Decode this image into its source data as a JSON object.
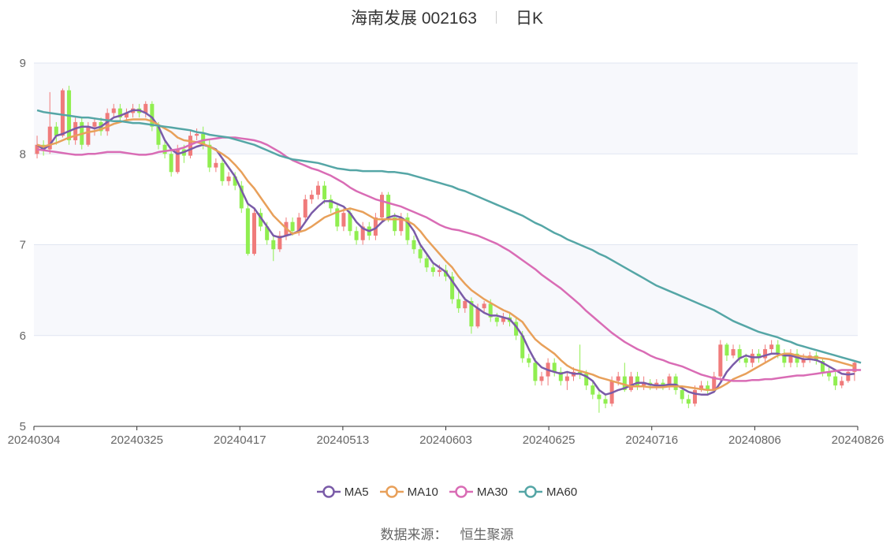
{
  "header": {
    "title": "海南发展 002163",
    "period": "日K"
  },
  "source": {
    "label": "数据来源：",
    "value": "恒生聚源"
  },
  "colors": {
    "up": "#f07b7b",
    "down": "#90ee50",
    "grid_band": "#f7f8fc",
    "axis": "#333333",
    "ma5": "#7a5ba8",
    "ma10": "#e8a05a",
    "ma30": "#d96cb5",
    "ma60": "#55a6a6"
  },
  "chart_data": {
    "type": "candlestick",
    "title": "海南发展 002163",
    "ylim": [
      5,
      9
    ],
    "yticks": [
      "5",
      "6",
      "7",
      "8",
      "9"
    ],
    "xticks": [
      "20240304",
      "20240325",
      "20240417",
      "20240513",
      "20240603",
      "20240625",
      "20240716",
      "20240806",
      "20240826"
    ],
    "legend": [
      "MA5",
      "MA10",
      "MA30",
      "MA60"
    ],
    "legend_position": "bottom-center",
    "grid": true,
    "candles": [
      [
        8.0,
        8.1,
        8.2,
        7.95
      ],
      [
        8.1,
        8.05,
        8.15,
        7.98
      ],
      [
        8.05,
        8.3,
        8.68,
        8.0
      ],
      [
        8.3,
        8.2,
        8.35,
        8.1
      ],
      [
        8.2,
        8.7,
        8.72,
        8.18
      ],
      [
        8.7,
        8.15,
        8.75,
        8.1
      ],
      [
        8.15,
        8.35,
        8.4,
        8.1
      ],
      [
        8.35,
        8.1,
        8.4,
        8.05
      ],
      [
        8.1,
        8.3,
        8.35,
        8.08
      ],
      [
        8.3,
        8.35,
        8.4,
        8.2
      ],
      [
        8.35,
        8.25,
        8.4,
        8.2
      ],
      [
        8.25,
        8.45,
        8.5,
        8.2
      ],
      [
        8.45,
        8.5,
        8.55,
        8.4
      ],
      [
        8.5,
        8.4,
        8.55,
        8.35
      ],
      [
        8.4,
        8.45,
        8.5,
        8.35
      ],
      [
        8.45,
        8.5,
        8.55,
        8.4
      ],
      [
        8.5,
        8.45,
        8.55,
        8.4
      ],
      [
        8.45,
        8.55,
        8.58,
        8.4
      ],
      [
        8.55,
        8.3,
        8.58,
        8.25
      ],
      [
        8.3,
        8.1,
        8.35,
        8.05
      ],
      [
        8.1,
        8.0,
        8.15,
        7.95
      ],
      [
        8.0,
        7.8,
        8.05,
        7.75
      ],
      [
        7.8,
        8.05,
        8.1,
        7.78
      ],
      [
        8.05,
        7.98,
        8.1,
        7.9
      ],
      [
        7.98,
        8.2,
        8.25,
        7.95
      ],
      [
        8.2,
        8.22,
        8.28,
        8.15
      ],
      [
        8.22,
        8.1,
        8.3,
        8.05
      ],
      [
        8.1,
        7.85,
        8.15,
        7.8
      ],
      [
        7.85,
        7.9,
        7.95,
        7.8
      ],
      [
        7.9,
        7.7,
        7.95,
        7.65
      ],
      [
        7.7,
        7.75,
        7.8,
        7.65
      ],
      [
        7.75,
        7.65,
        7.8,
        7.6
      ],
      [
        7.65,
        7.4,
        7.7,
        7.35
      ],
      [
        7.4,
        6.9,
        7.45,
        6.88
      ],
      [
        6.9,
        7.35,
        7.4,
        6.88
      ],
      [
        7.35,
        7.2,
        7.4,
        7.15
      ],
      [
        7.2,
        7.05,
        7.25,
        7.0
      ],
      [
        7.05,
        6.95,
        7.1,
        6.82
      ],
      [
        6.95,
        7.1,
        7.15,
        6.92
      ],
      [
        7.1,
        7.25,
        7.3,
        7.05
      ],
      [
        7.25,
        7.15,
        7.3,
        7.1
      ],
      [
        7.15,
        7.3,
        7.35,
        7.1
      ],
      [
        7.3,
        7.5,
        7.55,
        7.25
      ],
      [
        7.5,
        7.55,
        7.6,
        7.45
      ],
      [
        7.55,
        7.65,
        7.7,
        7.5
      ],
      [
        7.65,
        7.5,
        7.7,
        7.45
      ],
      [
        7.5,
        7.4,
        7.55,
        7.35
      ],
      [
        7.4,
        7.2,
        7.45,
        7.15
      ],
      [
        7.2,
        7.35,
        7.4,
        7.15
      ],
      [
        7.35,
        7.15,
        7.4,
        7.1
      ],
      [
        7.15,
        7.05,
        7.2,
        7.0
      ],
      [
        7.05,
        7.2,
        7.25,
        7.0
      ],
      [
        7.2,
        7.1,
        7.25,
        7.05
      ],
      [
        7.1,
        7.3,
        7.35,
        7.05
      ],
      [
        7.3,
        7.55,
        7.58,
        7.25
      ],
      [
        7.55,
        7.3,
        7.58,
        7.25
      ],
      [
        7.3,
        7.15,
        7.35,
        7.1
      ],
      [
        7.15,
        7.3,
        7.35,
        7.1
      ],
      [
        7.3,
        7.05,
        7.35,
        7.0
      ],
      [
        7.05,
        6.95,
        7.1,
        6.9
      ],
      [
        6.95,
        6.85,
        7.0,
        6.8
      ],
      [
        6.85,
        6.75,
        6.9,
        6.7
      ],
      [
        6.75,
        6.7,
        6.8,
        6.65
      ],
      [
        6.7,
        6.72,
        6.78,
        6.65
      ],
      [
        6.72,
        6.65,
        6.78,
        6.6
      ],
      [
        6.65,
        6.4,
        6.7,
        6.35
      ],
      [
        6.4,
        6.3,
        6.5,
        6.25
      ],
      [
        6.3,
        6.38,
        6.42,
        6.25
      ],
      [
        6.38,
        6.1,
        6.42,
        6.02
      ],
      [
        6.1,
        6.3,
        6.35,
        6.08
      ],
      [
        6.3,
        6.35,
        6.38,
        6.25
      ],
      [
        6.35,
        6.2,
        6.4,
        6.15
      ],
      [
        6.2,
        6.15,
        6.25,
        6.1
      ],
      [
        6.15,
        6.2,
        6.25,
        6.12
      ],
      [
        6.2,
        6.15,
        6.25,
        6.1
      ],
      [
        6.15,
        6.0,
        6.2,
        5.95
      ],
      [
        6.0,
        5.75,
        6.05,
        5.7
      ],
      [
        5.75,
        5.7,
        5.8,
        5.65
      ],
      [
        5.7,
        5.5,
        5.75,
        5.45
      ],
      [
        5.5,
        5.55,
        5.6,
        5.45
      ],
      [
        5.55,
        5.7,
        5.75,
        5.45
      ],
      [
        5.7,
        5.6,
        5.75,
        5.55
      ],
      [
        5.6,
        5.5,
        5.65,
        5.45
      ],
      [
        5.5,
        5.55,
        5.6,
        5.4
      ],
      [
        5.55,
        5.6,
        5.65,
        5.5
      ],
      [
        5.6,
        5.58,
        5.9,
        5.52
      ],
      [
        5.58,
        5.45,
        5.62,
        5.4
      ],
      [
        5.45,
        5.35,
        5.5,
        5.3
      ],
      [
        5.35,
        5.3,
        5.4,
        5.15
      ],
      [
        5.3,
        5.25,
        5.35,
        5.2
      ],
      [
        5.25,
        5.5,
        5.55,
        5.22
      ],
      [
        5.5,
        5.55,
        5.6,
        5.45
      ],
      [
        5.55,
        5.4,
        5.7,
        5.38
      ],
      [
        5.4,
        5.55,
        5.6,
        5.38
      ],
      [
        5.55,
        5.45,
        5.6,
        5.4
      ],
      [
        5.45,
        5.48,
        5.55,
        5.4
      ],
      [
        5.48,
        5.45,
        5.52,
        5.4
      ],
      [
        5.45,
        5.48,
        5.52,
        5.4
      ],
      [
        5.48,
        5.45,
        5.52,
        5.4
      ],
      [
        5.45,
        5.55,
        5.58,
        5.4
      ],
      [
        5.55,
        5.4,
        5.58,
        5.35
      ],
      [
        5.4,
        5.3,
        5.45,
        5.25
      ],
      [
        5.3,
        5.25,
        5.35,
        5.2
      ],
      [
        5.25,
        5.4,
        5.45,
        5.22
      ],
      [
        5.4,
        5.45,
        5.5,
        5.38
      ],
      [
        5.45,
        5.4,
        5.5,
        5.35
      ],
      [
        5.4,
        5.55,
        5.6,
        5.38
      ],
      [
        5.55,
        5.9,
        5.95,
        5.5
      ],
      [
        5.9,
        5.78,
        5.92,
        5.72
      ],
      [
        5.78,
        5.85,
        5.9,
        5.75
      ],
      [
        5.85,
        5.75,
        5.9,
        5.7
      ],
      [
        5.75,
        5.7,
        5.8,
        5.65
      ],
      [
        5.7,
        5.8,
        5.85,
        5.65
      ],
      [
        5.8,
        5.75,
        5.85,
        5.7
      ],
      [
        5.75,
        5.85,
        5.9,
        5.7
      ],
      [
        5.85,
        5.9,
        5.95,
        5.8
      ],
      [
        5.9,
        5.8,
        5.95,
        5.75
      ],
      [
        5.8,
        5.7,
        5.85,
        5.65
      ],
      [
        5.7,
        5.8,
        5.85,
        5.65
      ],
      [
        5.8,
        5.7,
        5.85,
        5.65
      ],
      [
        5.7,
        5.75,
        5.8,
        5.65
      ],
      [
        5.75,
        5.78,
        5.82,
        5.7
      ],
      [
        5.78,
        5.72,
        5.82,
        5.68
      ],
      [
        5.72,
        5.6,
        5.75,
        5.55
      ],
      [
        5.6,
        5.55,
        5.65,
        5.5
      ],
      [
        5.55,
        5.45,
        5.6,
        5.4
      ],
      [
        5.45,
        5.5,
        5.55,
        5.42
      ],
      [
        5.5,
        5.6,
        5.62,
        5.48
      ],
      [
        5.6,
        5.7,
        5.72,
        5.5
      ]
    ],
    "series": [
      {
        "name": "MA5",
        "values": [
          8.1,
          8.05,
          8.1,
          8.2,
          8.22,
          8.25,
          8.28,
          8.3,
          8.3,
          8.28,
          8.3,
          8.35,
          8.4,
          8.42,
          8.45,
          8.48,
          8.48,
          8.45,
          8.4,
          8.3,
          8.15,
          8.05,
          8.0,
          8.02,
          8.05,
          8.08,
          8.1,
          8.08,
          8.05,
          7.95,
          7.85,
          7.75,
          7.6,
          7.45,
          7.4,
          7.3,
          7.2,
          7.1,
          7.08,
          7.1,
          7.12,
          7.15,
          7.25,
          7.35,
          7.42,
          7.48,
          7.48,
          7.45,
          7.42,
          7.35,
          7.25,
          7.18,
          7.15,
          7.18,
          7.25,
          7.3,
          7.32,
          7.3,
          7.25,
          7.15,
          7.0,
          6.9,
          6.8,
          6.75,
          6.7,
          6.6,
          6.5,
          6.4,
          6.35,
          6.3,
          6.25,
          6.22,
          6.22,
          6.2,
          6.18,
          6.1,
          6.0,
          5.85,
          5.72,
          5.65,
          5.62,
          5.6,
          5.58,
          5.6,
          5.58,
          5.58,
          5.55,
          5.5,
          5.4,
          5.35,
          5.37,
          5.4,
          5.42,
          5.45,
          5.48,
          5.48,
          5.46,
          5.45,
          5.45,
          5.46,
          5.46,
          5.42,
          5.38,
          5.36,
          5.35,
          5.35,
          5.38,
          5.48,
          5.6,
          5.68,
          5.75,
          5.78,
          5.76,
          5.76,
          5.78,
          5.8,
          5.8,
          5.78,
          5.78,
          5.76,
          5.74,
          5.74,
          5.73,
          5.7,
          5.66,
          5.62,
          5.58,
          5.57,
          5.58
        ]
      },
      {
        "name": "MA10",
        "values": [
          8.1,
          8.08,
          8.1,
          8.12,
          8.15,
          8.18,
          8.2,
          8.22,
          8.24,
          8.25,
          8.27,
          8.3,
          8.33,
          8.35,
          8.37,
          8.38,
          8.38,
          8.38,
          8.36,
          8.32,
          8.28,
          8.24,
          8.18,
          8.15,
          8.14,
          8.13,
          8.11,
          8.08,
          8.04,
          8.0,
          7.95,
          7.88,
          7.8,
          7.7,
          7.62,
          7.52,
          7.42,
          7.32,
          7.25,
          7.18,
          7.12,
          7.14,
          7.16,
          7.2,
          7.25,
          7.3,
          7.33,
          7.36,
          7.38,
          7.4,
          7.38,
          7.36,
          7.32,
          7.28,
          7.28,
          7.28,
          7.28,
          7.28,
          7.26,
          7.22,
          7.15,
          7.06,
          6.98,
          6.9,
          6.82,
          6.75,
          6.65,
          6.57,
          6.5,
          6.45,
          6.4,
          6.36,
          6.32,
          6.28,
          6.25,
          6.2,
          6.15,
          6.05,
          5.96,
          5.9,
          5.85,
          5.8,
          5.73,
          5.67,
          5.63,
          5.61,
          5.59,
          5.57,
          5.54,
          5.52,
          5.5,
          5.48,
          5.46,
          5.44,
          5.44,
          5.44,
          5.43,
          5.43,
          5.43,
          5.44,
          5.44,
          5.44,
          5.43,
          5.42,
          5.41,
          5.4,
          5.4,
          5.43,
          5.47,
          5.52,
          5.55,
          5.58,
          5.62,
          5.66,
          5.7,
          5.74,
          5.78,
          5.8,
          5.8,
          5.78,
          5.77,
          5.76,
          5.76,
          5.75,
          5.74,
          5.72,
          5.7,
          5.68,
          5.66
        ]
      },
      {
        "name": "MA30",
        "values": [
          8.05,
          8.04,
          8.03,
          8.02,
          8.01,
          8.0,
          7.99,
          7.99,
          8.0,
          8.0,
          8.01,
          8.02,
          8.02,
          8.02,
          8.01,
          8.0,
          7.99,
          7.99,
          8.0,
          8.02,
          8.03,
          8.04,
          8.05,
          8.07,
          8.1,
          8.13,
          8.15,
          8.16,
          8.17,
          8.18,
          8.18,
          8.18,
          8.17,
          8.16,
          8.15,
          8.13,
          8.1,
          8.06,
          8.02,
          7.97,
          7.93,
          7.9,
          7.87,
          7.84,
          7.82,
          7.79,
          7.76,
          7.72,
          7.68,
          7.63,
          7.59,
          7.56,
          7.53,
          7.5,
          7.48,
          7.46,
          7.44,
          7.42,
          7.39,
          7.36,
          7.33,
          7.3,
          7.26,
          7.22,
          7.19,
          7.17,
          7.16,
          7.14,
          7.12,
          7.1,
          7.07,
          7.04,
          7.01,
          6.97,
          6.93,
          6.88,
          6.83,
          6.78,
          6.73,
          6.67,
          6.62,
          6.57,
          6.52,
          6.46,
          6.4,
          6.34,
          6.27,
          6.21,
          6.15,
          6.09,
          6.03,
          5.98,
          5.93,
          5.89,
          5.85,
          5.82,
          5.78,
          5.75,
          5.73,
          5.7,
          5.68,
          5.66,
          5.63,
          5.6,
          5.57,
          5.55,
          5.53,
          5.52,
          5.51,
          5.5,
          5.5,
          5.5,
          5.51,
          5.51,
          5.52,
          5.52,
          5.53,
          5.54,
          5.55,
          5.56,
          5.56,
          5.57,
          5.58,
          5.59,
          5.6,
          5.61,
          5.62,
          5.62,
          5.62,
          5.62
        ]
      },
      {
        "name": "MA60",
        "values": [
          8.48,
          8.46,
          8.45,
          8.44,
          8.43,
          8.42,
          8.41,
          8.4,
          8.4,
          8.39,
          8.38,
          8.37,
          8.36,
          8.36,
          8.35,
          8.34,
          8.34,
          8.33,
          8.32,
          8.31,
          8.3,
          8.29,
          8.28,
          8.27,
          8.26,
          8.24,
          8.23,
          8.21,
          8.2,
          8.19,
          8.18,
          8.16,
          8.14,
          8.12,
          8.1,
          8.07,
          8.04,
          8.01,
          7.98,
          7.96,
          7.94,
          7.93,
          7.92,
          7.91,
          7.9,
          7.88,
          7.86,
          7.84,
          7.83,
          7.82,
          7.82,
          7.81,
          7.81,
          7.81,
          7.81,
          7.8,
          7.8,
          7.79,
          7.78,
          7.76,
          7.74,
          7.72,
          7.7,
          7.68,
          7.66,
          7.64,
          7.61,
          7.59,
          7.56,
          7.53,
          7.5,
          7.47,
          7.44,
          7.41,
          7.38,
          7.35,
          7.32,
          7.28,
          7.24,
          7.21,
          7.17,
          7.13,
          7.1,
          7.06,
          7.03,
          7.0,
          6.97,
          6.94,
          6.9,
          6.87,
          6.83,
          6.79,
          6.75,
          6.71,
          6.67,
          6.63,
          6.59,
          6.55,
          6.52,
          6.49,
          6.46,
          6.43,
          6.4,
          6.37,
          6.34,
          6.31,
          6.28,
          6.24,
          6.2,
          6.16,
          6.13,
          6.1,
          6.07,
          6.04,
          6.02,
          6.0,
          5.98,
          5.95,
          5.93,
          5.9,
          5.88,
          5.86,
          5.84,
          5.82,
          5.8,
          5.78,
          5.76,
          5.74,
          5.72,
          5.7
        ]
      }
    ]
  }
}
